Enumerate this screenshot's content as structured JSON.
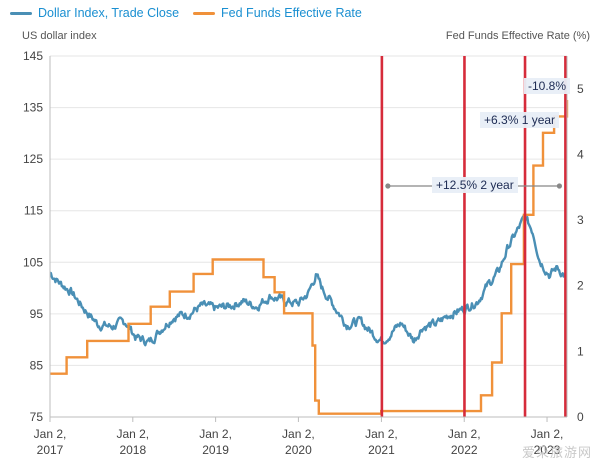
{
  "legend": {
    "series1": "Dollar Index, Trade Close",
    "series2": "Fed Funds Effective Rate"
  },
  "colors": {
    "dollar": "#4a8fb5",
    "fed": "#f0913a",
    "marker": "#d62b3a",
    "grid": "#e6e6e6",
    "axis_text": "#444444"
  },
  "annotations": {
    "callout_2yr": "+12.5% 2 year",
    "callout_1yr": "+6.3% 1 year",
    "callout_recent": "-10.8%"
  },
  "watermark": "爱朵旅游网",
  "chart_data": {
    "type": "line",
    "left_axis_label": "US dollar index",
    "right_axis_label": "Fed Funds Effective Rate (%)",
    "x_ticks": [
      {
        "date": "2017-01-02",
        "label": "Jan 2,\n2017"
      },
      {
        "date": "2018-01-02",
        "label": "Jan 2,\n2018"
      },
      {
        "date": "2019-01-02",
        "label": "Jan 2,\n2019"
      },
      {
        "date": "2020-01-02",
        "label": "Jan 2,\n2020"
      },
      {
        "date": "2021-01-02",
        "label": "Jan 2,\n2021"
      },
      {
        "date": "2022-01-02",
        "label": "Jan 2,\n2022"
      },
      {
        "date": "2023-01-02",
        "label": "Jan 2,\n2023"
      }
    ],
    "x_range": [
      "2017-01-02",
      "2023-03-31"
    ],
    "y_left": {
      "min": 75,
      "max": 145,
      "ticks": [
        75,
        85,
        95,
        105,
        115,
        125,
        135,
        145
      ]
    },
    "y_right": {
      "min": 0,
      "max": 5.5,
      "ticks": [
        0,
        1,
        2,
        3,
        4,
        5
      ]
    },
    "series": [
      {
        "name": "Dollar Index, Trade Close",
        "axis": "left",
        "points": [
          [
            "2017-01-02",
            103
          ],
          [
            "2017-02-15",
            101
          ],
          [
            "2017-04-01",
            99.5
          ],
          [
            "2017-06-01",
            96
          ],
          [
            "2017-08-01",
            93
          ],
          [
            "2017-10-01",
            92.5
          ],
          [
            "2017-12-01",
            93.5
          ],
          [
            "2018-01-15",
            90.5
          ],
          [
            "2018-03-15",
            89.5
          ],
          [
            "2018-05-15",
            92.5
          ],
          [
            "2018-07-01",
            94.5
          ],
          [
            "2018-09-01",
            95
          ],
          [
            "2018-11-01",
            96.5
          ],
          [
            "2019-01-02",
            96
          ],
          [
            "2019-03-01",
            96.5
          ],
          [
            "2019-05-01",
            97.5
          ],
          [
            "2019-07-01",
            96.5
          ],
          [
            "2019-09-01",
            98.5
          ],
          [
            "2019-11-01",
            97.5
          ],
          [
            "2020-01-02",
            97
          ],
          [
            "2020-02-15",
            99
          ],
          [
            "2020-03-19",
            102.5
          ],
          [
            "2020-04-15",
            100
          ],
          [
            "2020-06-01",
            97
          ],
          [
            "2020-08-01",
            93
          ],
          [
            "2020-10-01",
            93.5
          ],
          [
            "2020-12-01",
            91
          ],
          [
            "2021-01-06",
            89.8
          ],
          [
            "2021-03-31",
            93.2
          ],
          [
            "2021-05-25",
            89.8
          ],
          [
            "2021-07-01",
            92.5
          ],
          [
            "2021-09-01",
            93
          ],
          [
            "2021-11-01",
            95
          ],
          [
            "2022-01-02",
            96
          ],
          [
            "2022-03-01",
            97.5
          ],
          [
            "2022-04-15",
            100.5
          ],
          [
            "2022-06-01",
            103
          ],
          [
            "2022-07-15",
            108
          ],
          [
            "2022-09-27",
            113.7
          ],
          [
            "2022-11-01",
            111
          ],
          [
            "2022-12-01",
            105.5
          ],
          [
            "2023-01-15",
            102.5
          ],
          [
            "2023-02-15",
            104
          ],
          [
            "2023-03-31",
            102
          ]
        ]
      },
      {
        "name": "Fed Funds Effective Rate",
        "axis": "right",
        "points": [
          [
            "2017-01-02",
            0.66
          ],
          [
            "2017-03-16",
            0.91
          ],
          [
            "2017-06-15",
            1.16
          ],
          [
            "2017-12-14",
            1.42
          ],
          [
            "2018-03-22",
            1.68
          ],
          [
            "2018-06-14",
            1.91
          ],
          [
            "2018-09-27",
            2.18
          ],
          [
            "2018-12-20",
            2.4
          ],
          [
            "2019-08-01",
            2.13
          ],
          [
            "2019-09-19",
            1.9
          ],
          [
            "2019-10-31",
            1.58
          ],
          [
            "2020-03-04",
            1.09
          ],
          [
            "2020-03-16",
            0.25
          ],
          [
            "2020-04-01",
            0.05
          ],
          [
            "2021-01-01",
            0.09
          ],
          [
            "2022-03-17",
            0.33
          ],
          [
            "2022-05-05",
            0.83
          ],
          [
            "2022-06-16",
            1.58
          ],
          [
            "2022-07-28",
            2.33
          ],
          [
            "2022-09-22",
            3.08
          ],
          [
            "2022-11-03",
            3.83
          ],
          [
            "2022-12-15",
            4.33
          ],
          [
            "2023-02-02",
            4.58
          ],
          [
            "2023-03-31",
            4.83
          ]
        ]
      }
    ],
    "vertical_markers": [
      "2021-01-04",
      "2022-01-03",
      "2022-09-27",
      "2023-03-24"
    ]
  }
}
